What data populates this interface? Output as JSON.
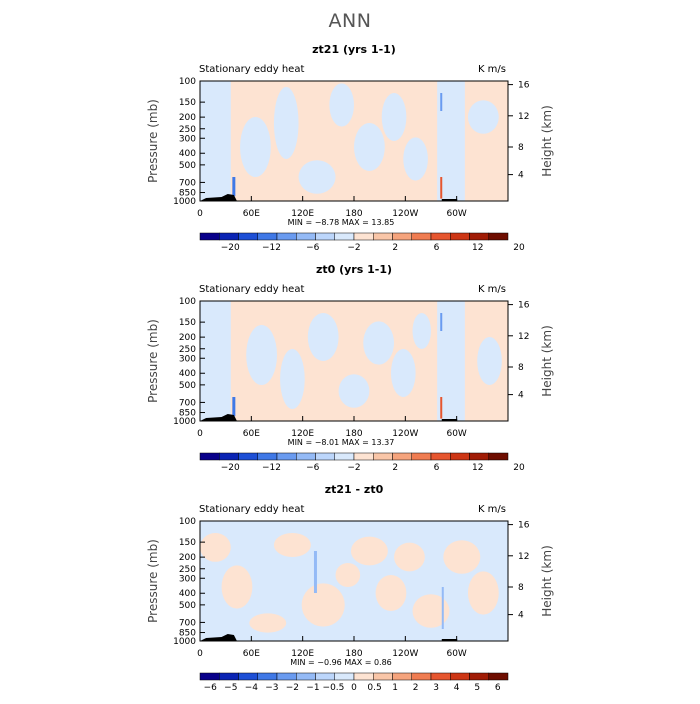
{
  "figure": {
    "title": "ANN"
  },
  "chart_data": [
    {
      "type": "heatmap",
      "title": "zt21 (yrs 1-1)",
      "left_label": "Stationary eddy heat",
      "right_label": "K m/s",
      "ylabel": "Pressure (mb)",
      "y2label": "Height (km)",
      "x_ticks": [
        "0",
        "60E",
        "120E",
        "180",
        "120W",
        "60W"
      ],
      "y_ticks": [
        "100",
        "150",
        "200",
        "250",
        "300",
        "400",
        "500",
        "700",
        "850",
        "1000"
      ],
      "y2_ticks": [
        "16",
        "12",
        "8",
        "4"
      ],
      "stats": "MIN =  −8.78   MAX =  13.85",
      "levels": [
        "−20",
        "−12",
        "−6",
        "−2",
        "2",
        "6",
        "12",
        "20"
      ],
      "colors": [
        "#08008a",
        "#0a24b4",
        "#1d4fd6",
        "#3f78e6",
        "#6a9bf0",
        "#94baf6",
        "#bcd6fb",
        "#d9e9fc",
        "#fde3d2",
        "#f9c6a8",
        "#f5a47d",
        "#ef7c51",
        "#e6562f",
        "#cd3615",
        "#a11c06",
        "#6e0d00"
      ],
      "pattern": "A"
    },
    {
      "type": "heatmap",
      "title": "zt0 (yrs 1-1)",
      "left_label": "Stationary eddy heat",
      "right_label": "K m/s",
      "ylabel": "Pressure (mb)",
      "y2label": "Height (km)",
      "x_ticks": [
        "0",
        "60E",
        "120E",
        "180",
        "120W",
        "60W"
      ],
      "y_ticks": [
        "100",
        "150",
        "200",
        "250",
        "300",
        "400",
        "500",
        "700",
        "850",
        "1000"
      ],
      "y2_ticks": [
        "16",
        "12",
        "8",
        "4"
      ],
      "stats": "MIN =  −8.01   MAX =  13.37",
      "levels": [
        "−20",
        "−12",
        "−6",
        "−2",
        "2",
        "6",
        "12",
        "20"
      ],
      "colors": [
        "#08008a",
        "#0a24b4",
        "#1d4fd6",
        "#3f78e6",
        "#6a9bf0",
        "#94baf6",
        "#bcd6fb",
        "#d9e9fc",
        "#fde3d2",
        "#f9c6a8",
        "#f5a47d",
        "#ef7c51",
        "#e6562f",
        "#cd3615",
        "#a11c06",
        "#6e0d00"
      ],
      "pattern": "B"
    },
    {
      "type": "heatmap",
      "title": "zt21 - zt0",
      "left_label": "Stationary eddy heat",
      "right_label": "K m/s",
      "ylabel": "Pressure (mb)",
      "y2label": "Height (km)",
      "x_ticks": [
        "0",
        "60E",
        "120E",
        "180",
        "120W",
        "60W"
      ],
      "y_ticks": [
        "100",
        "150",
        "200",
        "250",
        "300",
        "400",
        "500",
        "700",
        "850",
        "1000"
      ],
      "y2_ticks": [
        "16",
        "12",
        "8",
        "4"
      ],
      "stats": "MIN =  −0.96   MAX =  0.86",
      "levels": [
        "−6",
        "−5",
        "−4",
        "−3",
        "−2",
        "−1",
        "−0.5",
        "0",
        "0.5",
        "1",
        "2",
        "3",
        "4",
        "5",
        "6"
      ],
      "colors": [
        "#08008a",
        "#0a24b4",
        "#1d4fd6",
        "#3f78e6",
        "#6a9bf0",
        "#94baf6",
        "#bcd6fb",
        "#d9e9fc",
        "#fde3d2",
        "#f9c6a8",
        "#f5a47d",
        "#ef7c51",
        "#e6562f",
        "#cd3615",
        "#a11c06",
        "#6e0d00"
      ],
      "pattern": "C"
    }
  ]
}
